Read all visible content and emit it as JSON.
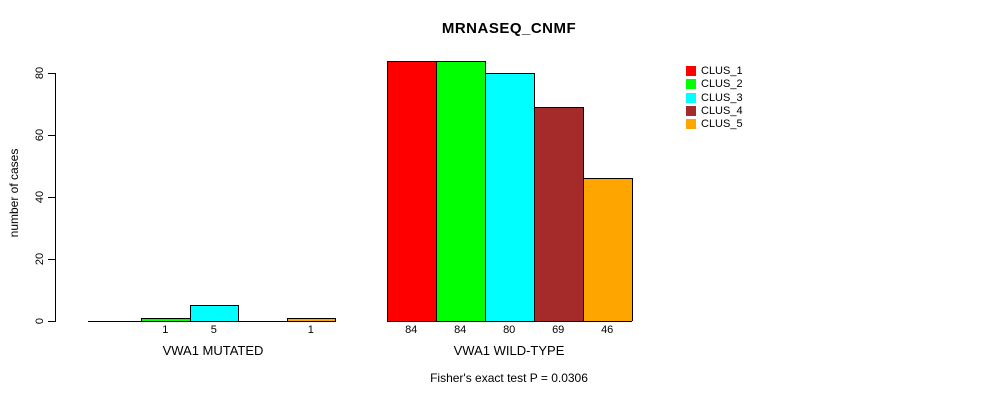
{
  "chart_data": {
    "type": "bar",
    "title": "MRNASEQ_CNMF",
    "ylabel": "number of cases",
    "ylim": [
      0,
      80
    ],
    "yticks": [
      0,
      20,
      40,
      60,
      80
    ],
    "grid": false,
    "legend_position": "right",
    "categories": [
      "VWA1 MUTATED",
      "VWA1 WILD-TYPE"
    ],
    "series": [
      {
        "name": "CLUS_1",
        "color": "#FF0000",
        "values": [
          0,
          84
        ]
      },
      {
        "name": "CLUS_2",
        "color": "#00FF00",
        "values": [
          1,
          84
        ]
      },
      {
        "name": "CLUS_3",
        "color": "#00FFFF",
        "values": [
          5,
          80
        ]
      },
      {
        "name": "CLUS_4",
        "color": "#A52A2A",
        "values": [
          0,
          69
        ]
      },
      {
        "name": "CLUS_5",
        "color": "#FFA500",
        "values": [
          1,
          46
        ]
      }
    ],
    "bar_value_labels": {
      "shown": true,
      "hide_zero": true
    },
    "footer": "Fisher's exact test P = 0.0306",
    "axis_color": "#000000",
    "background": "#FFFFFF"
  }
}
